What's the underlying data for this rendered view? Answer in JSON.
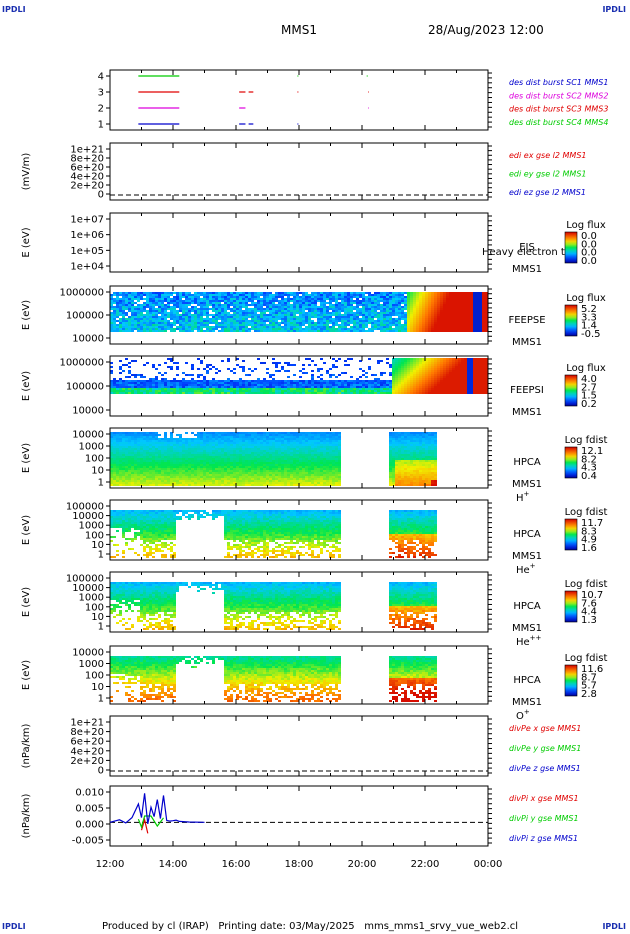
{
  "page": {
    "corner_label": "IPDLI",
    "title": "MMS1",
    "datetime": "28/Aug/2023 12:00",
    "footer": {
      "produced_by": "Produced by cl (IRAP)",
      "printing_date": "Printing date: 03/May/2025",
      "script": "mms_mms1_srvy_vue_web2.cl"
    }
  },
  "time_axis": {
    "ticks": [
      "12:00",
      "14:00",
      "16:00",
      "18:00",
      "20:00",
      "22:00",
      "00:00"
    ]
  },
  "colors": {
    "red": "#e00000",
    "green": "#00cc00",
    "blue": "#0000cc",
    "magenta": "#dd00dd",
    "navy": "#000080"
  },
  "chart_data": [
    {
      "id": "burst",
      "type": "line",
      "yticks": [
        "4",
        "3",
        "2",
        "1"
      ],
      "legend": [
        {
          "label": "des dist burst SC1 MMS1",
          "color": "#0000cc"
        },
        {
          "label": "des dist burst SC2 MMS2",
          "color": "#dd00dd"
        },
        {
          "label": "des dist burst SC3 MMS3",
          "color": "#e00000"
        },
        {
          "label": "des dist burst SC4 MMS4",
          "color": "#00cc00"
        }
      ],
      "series": [
        {
          "level": 4,
          "color": "#00cc00",
          "segments": [
            [
              12.9,
              14.2
            ],
            [
              17.95,
              17.98
            ],
            [
              20.15,
              20.18
            ]
          ]
        },
        {
          "level": 3,
          "color": "#e00000",
          "segments": [
            [
              12.9,
              14.2
            ],
            [
              16.1,
              16.3
            ],
            [
              16.4,
              16.55
            ],
            [
              17.95,
              17.98
            ],
            [
              20.2,
              20.22
            ]
          ]
        },
        {
          "level": 2,
          "color": "#dd00dd",
          "segments": [
            [
              12.9,
              14.2
            ],
            [
              16.1,
              16.3
            ],
            [
              20.2,
              20.22
            ]
          ]
        },
        {
          "level": 1,
          "color": "#0000cc",
          "segments": [
            [
              12.9,
              14.2
            ],
            [
              16.1,
              16.3
            ],
            [
              16.4,
              16.55
            ],
            [
              17.95,
              17.98
            ]
          ]
        }
      ]
    },
    {
      "id": "edi",
      "type": "line",
      "ylabel": "(mV/m)",
      "yticks": [
        "1e+21",
        "8e+20",
        "6e+20",
        "4e+20",
        "2e+20",
        "0"
      ],
      "legend": [
        {
          "label": "edi ex gse l2 MMS1",
          "color": "#e00000"
        },
        {
          "label": "edi ey gse l2 MMS1",
          "color": "#00cc00"
        },
        {
          "label": "edi ez gse l2 MMS1",
          "color": "#0000cc"
        }
      ]
    },
    {
      "id": "eis",
      "type": "heatmap",
      "ylabel": "E (eV)",
      "yticks": [
        "1e+07",
        "1e+06",
        "1e+05",
        "1e+04"
      ],
      "instrument": "EIS",
      "instrument_sub": "MMS1",
      "overlay_text": "Heavy electron t",
      "colorbar": {
        "title": "Log flux",
        "ticks": [
          "0.0",
          "0.0",
          "0.0",
          "0.0"
        ]
      }
    },
    {
      "id": "feepse",
      "type": "heatmap",
      "ylabel": "E (eV)",
      "yticks": [
        "1000000",
        "100000",
        "10000"
      ],
      "instrument": "FEEPSE",
      "instrument_sub": "MMS1",
      "colorbar": {
        "title": "Log flux",
        "ticks": [
          "5.2",
          "3.3",
          "1.4",
          "-0.5"
        ]
      }
    },
    {
      "id": "feepsi",
      "type": "heatmap",
      "ylabel": "E (eV)",
      "yticks": [
        "1000000",
        "100000",
        "10000"
      ],
      "instrument": "FEEPSI",
      "instrument_sub": "MMS1",
      "colorbar": {
        "title": "Log flux",
        "ticks": [
          "4.0",
          "2.7",
          "1.5",
          "0.2"
        ]
      }
    },
    {
      "id": "hpca_h",
      "type": "heatmap",
      "ylabel": "E (eV)",
      "yticks": [
        "10000",
        "1000",
        "100",
        "10",
        "1"
      ],
      "instrument": "HPCA",
      "instrument_sub": "MMS1",
      "species": "H",
      "charge": "+",
      "colorbar": {
        "title": "Log fdist",
        "ticks": [
          "12.1",
          "8.2",
          "4.3",
          "0.4"
        ]
      }
    },
    {
      "id": "hpca_he",
      "type": "heatmap",
      "ylabel": "E (eV)",
      "yticks": [
        "100000",
        "10000",
        "1000",
        "100",
        "10",
        "1"
      ],
      "instrument": "HPCA",
      "instrument_sub": "MMS1",
      "species": "He",
      "charge": "+",
      "colorbar": {
        "title": "Log fdist",
        "ticks": [
          "11.7",
          "8.3",
          "4.9",
          "1.6"
        ]
      }
    },
    {
      "id": "hpca_hepp",
      "type": "heatmap",
      "ylabel": "E (eV)",
      "yticks": [
        "100000",
        "10000",
        "1000",
        "100",
        "10",
        "1"
      ],
      "instrument": "HPCA",
      "instrument_sub": "MMS1",
      "species": "He",
      "charge": "++",
      "colorbar": {
        "title": "Log fdist",
        "ticks": [
          "10.7",
          "7.6",
          "4.4",
          "1.3"
        ]
      }
    },
    {
      "id": "hpca_o",
      "type": "heatmap",
      "ylabel": "E (eV)",
      "yticks": [
        "10000",
        "1000",
        "100",
        "10",
        "1"
      ],
      "instrument": "HPCA",
      "instrument_sub": "MMS1",
      "species": "O",
      "charge": "+",
      "colorbar": {
        "title": "Log fdist",
        "ticks": [
          "11.6",
          "8.7",
          "5.7",
          "2.8"
        ]
      }
    },
    {
      "id": "divpe",
      "type": "line",
      "ylabel": "(nPa/km)",
      "yticks": [
        "1e+21",
        "8e+20",
        "6e+20",
        "4e+20",
        "2e+20",
        "0"
      ],
      "legend": [
        {
          "label": "divPe x gse MMS1",
          "color": "#e00000"
        },
        {
          "label": "divPe y gse MMS1",
          "color": "#00cc00"
        },
        {
          "label": "divPe z gse MMS1",
          "color": "#0000cc"
        }
      ]
    },
    {
      "id": "divpi",
      "type": "line",
      "ylabel": "(nPa/km)",
      "yticks": [
        "0.010",
        "0.005",
        "0.000",
        "-0.005"
      ],
      "ylim": [
        -0.0075,
        0.0115
      ],
      "legend": [
        {
          "label": "divPi x gse MMS1",
          "color": "#e00000"
        },
        {
          "label": "divPi y gse MMS1",
          "color": "#00cc00"
        },
        {
          "label": "divPi z gse MMS1",
          "color": "#0000cc"
        }
      ],
      "series": [
        {
          "name": "divPi z gse MMS1",
          "color": "#0000cc",
          "x": [
            12.0,
            12.3,
            12.5,
            12.7,
            12.9,
            13.0,
            13.1,
            13.2,
            13.3,
            13.4,
            13.5,
            13.6,
            13.7,
            13.8,
            13.9,
            14.0,
            14.1,
            14.2,
            14.5,
            15.0
          ],
          "y": [
            0.0,
            0.0008,
            -0.0002,
            0.0015,
            0.0058,
            0.0015,
            0.0092,
            -0.0005,
            0.0048,
            0.0018,
            0.0072,
            0.0012,
            0.0085,
            0.0006,
            0.0004,
            0.0005,
            0.0007,
            0.0003,
            0.0001,
            0.0
          ]
        },
        {
          "name": "divPi y gse MMS1",
          "color": "#00cc00",
          "x": [
            12.9,
            13.0,
            13.1,
            13.3,
            13.5,
            13.7
          ],
          "y": [
            0.001,
            -0.0015,
            0.002,
            0.002,
            -0.0012,
            0.0014
          ]
        },
        {
          "name": "divPi x gse MMS1",
          "color": "#e00000",
          "x": [
            13.0,
            13.1,
            13.2
          ],
          "y": [
            -0.0025,
            0.0008,
            -0.0035
          ]
        }
      ]
    }
  ]
}
